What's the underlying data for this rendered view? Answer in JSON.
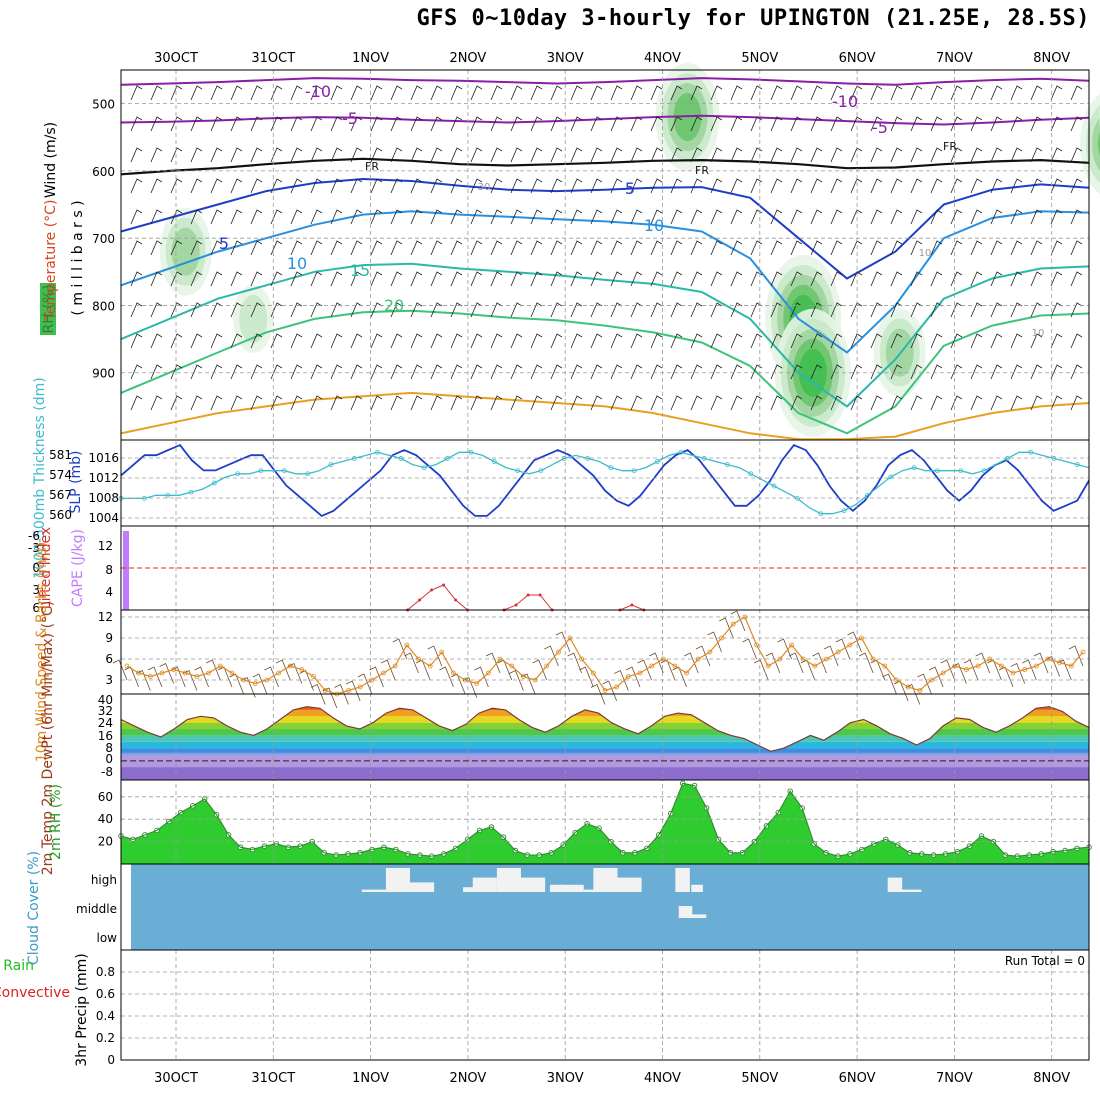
{
  "title": "GFS 0~10day 3-hourly for UPINGTON (21.25E, 28.5S)",
  "colors": {
    "grid": "#9a9a9a",
    "frame": "#000000",
    "rh_shade": "#3fbf4f",
    "wind_label": "#000000",
    "temp_label": "#d9431e",
    "rh_label": "#3a9a3a",
    "slp": "#1e3cc8",
    "thickness": "#3cbccc",
    "cape": "#c07cff",
    "li": "#d83030",
    "wind_speed": "#e08a1e",
    "wind_barb": "#6b4a2a",
    "rh2m_line": "#2f8a2f",
    "cloud_bg": "#6aaed6",
    "cloud_bar": "#f2f2f2",
    "precip_total": "#1fbf1f",
    "precip_conv": "#e02020"
  },
  "chart_data": [
    {
      "id": "meteogram-dates",
      "type": "table",
      "x_dates_top": [
        "30OCT",
        "31OCT",
        "1NOV",
        "2NOV",
        "3NOV",
        "4NOV",
        "5NOV",
        "6NOV",
        "7NOV",
        "8NOV"
      ],
      "x_dates_bottom": [
        "30OCT",
        "31OCT",
        "1NOV",
        "2NOV",
        "3NOV",
        "4NOV",
        "5NOV",
        "6NOV",
        "7NOV",
        "8NOV"
      ]
    },
    {
      "id": "upper-air",
      "type": "heatmap",
      "ylabel": "( m i l l i b a r s )",
      "legend_labels": [
        "Wind (m/s)",
        "Temperature (°C)",
        "RH (%)"
      ],
      "y_ticks": [
        "500",
        "600",
        "700",
        "800",
        "900"
      ],
      "ylim": [
        1000,
        450
      ],
      "isotherm_labels": [
        "-10",
        "-5",
        "-10",
        "-5",
        "FR",
        "FR",
        "FR",
        "5",
        "5",
        "10",
        "10",
        "15",
        "20",
        "30",
        "10",
        "10"
      ],
      "isotherms": [
        {
          "value": -10,
          "color": "#8a1ea8",
          "pressure": [
            472,
            470,
            468,
            465,
            462,
            463,
            465,
            466,
            468,
            470,
            468,
            465,
            462,
            464,
            467,
            470,
            472,
            468,
            465,
            463,
            466
          ]
        },
        {
          "value": -5,
          "color": "#8a1ea8",
          "pressure": [
            528,
            527,
            525,
            522,
            520,
            521,
            524,
            526,
            528,
            526,
            523,
            520,
            518,
            520,
            523,
            526,
            529,
            531,
            528,
            524,
            521
          ]
        },
        {
          "value": 0,
          "color": "#111111",
          "pressure": [
            605,
            600,
            596,
            590,
            585,
            582,
            585,
            590,
            592,
            590,
            588,
            585,
            584,
            586,
            590,
            596,
            595,
            590,
            586,
            584,
            588
          ]
        },
        {
          "value": 5,
          "color": "#1e3cc8",
          "pressure": [
            690,
            670,
            650,
            630,
            618,
            612,
            615,
            622,
            628,
            630,
            628,
            625,
            624,
            640,
            700,
            760,
            720,
            650,
            628,
            620,
            625
          ]
        },
        {
          "value": 10,
          "color": "#2890e0",
          "pressure": [
            770,
            745,
            720,
            700,
            680,
            665,
            660,
            665,
            668,
            672,
            675,
            680,
            690,
            730,
            820,
            870,
            800,
            700,
            670,
            660,
            662
          ]
        },
        {
          "value": 15,
          "color": "#2ab8a8",
          "pressure": [
            850,
            820,
            790,
            770,
            750,
            740,
            738,
            745,
            750,
            755,
            762,
            768,
            780,
            820,
            900,
            950,
            880,
            790,
            760,
            745,
            742
          ]
        },
        {
          "value": 20,
          "color": "#3bc47a",
          "pressure": [
            930,
            900,
            870,
            840,
            820,
            810,
            808,
            812,
            818,
            822,
            830,
            840,
            855,
            890,
            960,
            990,
            950,
            860,
            830,
            815,
            812
          ]
        },
        {
          "value": 30,
          "color": "#e8a020",
          "pressure": [
            990,
            975,
            960,
            950,
            940,
            935,
            930,
            935,
            940,
            945,
            950,
            960,
            975,
            990,
            999,
            999,
            995,
            975,
            960,
            950,
            945
          ]
        }
      ],
      "rh_shading": [
        {
          "x_day": 0.1,
          "p_center": 720,
          "level": 2
        },
        {
          "x_day": 0.8,
          "p_center": 820,
          "level": 1
        },
        {
          "x_day": 5.3,
          "p_center": 520,
          "level": 3
        },
        {
          "x_day": 6.5,
          "p_center": 820,
          "level": 4
        },
        {
          "x_day": 6.6,
          "p_center": 900,
          "level": 4
        },
        {
          "x_day": 7.5,
          "p_center": 870,
          "level": 2
        },
        {
          "x_day": 9.7,
          "p_center": 560,
          "level": 3
        },
        {
          "x_day": 9.9,
          "p_center": 520,
          "level": 3
        }
      ]
    },
    {
      "id": "slp-thickness",
      "type": "line",
      "ylabel_left": "1000-500mb Thickness (dm)",
      "ylabel_right": "SLP (mb)",
      "left_ticks": [
        "581",
        "574",
        "567",
        "560"
      ],
      "right_ticks": [
        "1016",
        "1012",
        "1008",
        "1004"
      ],
      "series": [
        {
          "name": "SLP",
          "unit": "mb",
          "ylim": [
            1002,
            1019
          ],
          "values": [
            1012,
            1014,
            1016,
            1016,
            1017,
            1018,
            1015,
            1013,
            1013,
            1014,
            1015,
            1016,
            1016,
            1013,
            1010,
            1008,
            1006,
            1004,
            1005,
            1007,
            1009,
            1011,
            1013,
            1016,
            1017,
            1016,
            1014,
            1012,
            1009,
            1006,
            1004,
            1004,
            1006,
            1009,
            1012,
            1015,
            1016,
            1017,
            1016,
            1014,
            1012,
            1009,
            1007,
            1006,
            1008,
            1011,
            1014,
            1016,
            1017,
            1015,
            1012,
            1009,
            1006,
            1006,
            1008,
            1011,
            1015,
            1018,
            1017,
            1014,
            1010,
            1007,
            1005,
            1007,
            1010,
            1014,
            1016,
            1017,
            1015,
            1012,
            1009,
            1007,
            1009,
            1012,
            1014,
            1015,
            1013,
            1010,
            1007,
            1005,
            1006,
            1007,
            1011
          ]
        },
        {
          "name": "Thickness",
          "unit": "dm",
          "ylim": [
            556,
            584
          ],
          "values": [
            565,
            565,
            565,
            566,
            566,
            566,
            567,
            568,
            570,
            572,
            573,
            573,
            574,
            574,
            574,
            573,
            573,
            574,
            576,
            577,
            578,
            579,
            580,
            579,
            578,
            576,
            575,
            576,
            578,
            580,
            580,
            579,
            577,
            575,
            574,
            573,
            574,
            576,
            578,
            579,
            578,
            577,
            575,
            574,
            574,
            575,
            577,
            579,
            580,
            579,
            578,
            577,
            576,
            575,
            573,
            571,
            569,
            567,
            565,
            562,
            560,
            560,
            561,
            563,
            566,
            569,
            572,
            574,
            575,
            574,
            574,
            574,
            574,
            573,
            574,
            576,
            578,
            580,
            580,
            579,
            578,
            577,
            576,
            575
          ]
        }
      ]
    },
    {
      "id": "cape-li",
      "type": "line",
      "ylabel_left": "Lifted Index",
      "ylabel_right": "CAPE (J/kg)",
      "left_ticks": [
        "-6",
        "-3",
        "0",
        "3",
        "6"
      ],
      "right_ticks": [
        "12",
        "8",
        "4"
      ],
      "li_zero": 0,
      "cape_bar": {
        "x_day": 0.0,
        "value": 14
      },
      "cape_blips": [
        {
          "x_day": 2.4,
          "values": [
            0,
            2,
            4,
            5,
            2,
            0
          ]
        },
        {
          "x_day": 3.4,
          "values": [
            0,
            1,
            3,
            3,
            0
          ]
        },
        {
          "x_day": 4.6,
          "values": [
            0,
            1,
            0
          ]
        },
        {
          "x_day": 9.6,
          "values": [
            0,
            1,
            0
          ]
        }
      ]
    },
    {
      "id": "wind-10m",
      "type": "line",
      "ylabel": "10m Wind Speed & Barbs (m/s)",
      "y_ticks": [
        "12",
        "9",
        "6",
        "3"
      ],
      "ylim": [
        1,
        13
      ],
      "values": [
        5,
        4,
        3.5,
        4,
        4.5,
        4,
        3.5,
        4,
        5,
        4,
        3,
        2.5,
        3,
        4,
        5,
        4.5,
        3.5,
        1.5,
        1,
        1.5,
        2,
        3,
        4,
        5,
        8,
        6,
        5,
        7,
        4,
        3,
        2.5,
        4,
        6,
        5,
        3.5,
        3,
        5,
        7,
        9,
        6,
        4,
        1.5,
        2,
        3.5,
        4,
        5,
        6,
        5,
        4,
        6,
        7,
        9,
        11,
        12,
        8,
        5,
        6,
        8,
        6,
        5,
        6,
        7,
        8,
        9,
        6,
        5,
        3,
        2,
        1.5,
        3,
        4,
        5,
        4.5,
        5,
        6,
        5,
        4,
        4.5,
        5,
        6,
        5.5,
        5,
        7
      ]
    },
    {
      "id": "temp-2m",
      "type": "area",
      "ylabel": "2m Temp 2m DewPt (6hr Min/Max) (°C)",
      "y_ticks": [
        "40",
        "32",
        "24",
        "16",
        "8",
        "0",
        "-8"
      ],
      "ylim": [
        -12,
        42
      ],
      "temp": [
        26,
        22,
        18,
        15,
        20,
        26,
        28,
        27,
        22,
        18,
        16,
        20,
        26,
        32,
        34,
        33,
        27,
        22,
        20,
        24,
        30,
        33,
        32,
        27,
        22,
        19,
        23,
        30,
        33,
        32,
        26,
        21,
        18,
        22,
        28,
        32,
        30,
        24,
        20,
        17,
        22,
        28,
        30,
        29,
        24,
        19,
        16,
        14,
        10,
        6,
        8,
        12,
        16,
        13,
        18,
        24,
        26,
        22,
        17,
        14,
        10,
        14,
        22,
        27,
        26,
        21,
        18,
        22,
        27,
        33,
        34,
        31,
        25,
        21
      ]
    },
    {
      "id": "rh-2m",
      "type": "area",
      "ylabel": "2m RH (%)",
      "y_ticks": [
        "60",
        "40",
        "20"
      ],
      "ylim": [
        0,
        75
      ],
      "values": [
        25,
        22,
        26,
        30,
        38,
        46,
        52,
        58,
        44,
        26,
        15,
        13,
        16,
        18,
        15,
        16,
        20,
        10,
        8,
        9,
        10,
        13,
        15,
        13,
        9,
        8,
        7,
        9,
        14,
        22,
        30,
        33,
        24,
        12,
        8,
        8,
        10,
        17,
        28,
        36,
        32,
        20,
        10,
        10,
        14,
        26,
        45,
        72,
        70,
        50,
        22,
        10,
        10,
        20,
        34,
        46,
        65,
        50,
        18,
        10,
        7,
        9,
        13,
        18,
        22,
        17,
        10,
        9,
        8,
        9,
        11,
        16,
        25,
        20,
        8,
        7,
        8,
        9,
        11,
        12,
        14,
        15
      ]
    },
    {
      "id": "cloud-cover",
      "type": "bar",
      "ylabel": "Cloud Cover (%)",
      "level_labels": [
        "high",
        "middle",
        "low"
      ],
      "bars": [
        {
          "x_day": 2.05,
          "width": 0.25,
          "level": "high",
          "value": 10
        },
        {
          "x_day": 2.3,
          "width": 0.25,
          "level": "high",
          "value": 100
        },
        {
          "x_day": 2.55,
          "width": 0.25,
          "level": "high",
          "value": 40
        },
        {
          "x_day": 3.05,
          "width": 0.15,
          "level": "high",
          "value": 20
        },
        {
          "x_day": 3.2,
          "width": 0.25,
          "level": "high",
          "value": 60
        },
        {
          "x_day": 3.45,
          "width": 0.25,
          "level": "high",
          "value": 100
        },
        {
          "x_day": 3.7,
          "width": 0.25,
          "level": "high",
          "value": 60
        },
        {
          "x_day": 3.95,
          "width": 0.15,
          "level": "high",
          "value": 30
        },
        {
          "x_day": 4.1,
          "width": 0.25,
          "level": "high",
          "value": 30
        },
        {
          "x_day": 4.3,
          "width": 0.15,
          "level": "high",
          "value": 10
        },
        {
          "x_day": 4.45,
          "width": 0.25,
          "level": "high",
          "value": 100
        },
        {
          "x_day": 4.7,
          "width": 0.25,
          "level": "high",
          "value": 60
        },
        {
          "x_day": 5.25,
          "width": 0.15,
          "level": "high",
          "value": 100
        },
        {
          "x_day": 5.4,
          "width": 0.12,
          "level": "high",
          "value": 30
        },
        {
          "x_day": 5.28,
          "width": 0.14,
          "level": "middle",
          "value": 50
        },
        {
          "x_day": 5.42,
          "width": 0.15,
          "level": "middle",
          "value": 15
        },
        {
          "x_day": 7.45,
          "width": 0.15,
          "level": "high",
          "value": 60
        },
        {
          "x_day": 7.6,
          "width": 0.25,
          "level": "high",
          "value": 10
        },
        {
          "x_day": 9.85,
          "width": 0.25,
          "level": "middle",
          "value": 12
        }
      ]
    },
    {
      "id": "precip",
      "type": "bar",
      "ylabel": "3hr Precip (mm)",
      "legend_labels": [
        "Total / Rain",
        "Convective"
      ],
      "y_ticks": [
        "0.8",
        "0.6",
        "0.4",
        "0.2",
        "0"
      ],
      "ylim": [
        0,
        1.0
      ],
      "values": [],
      "annotation": "Run Total = 0"
    }
  ]
}
